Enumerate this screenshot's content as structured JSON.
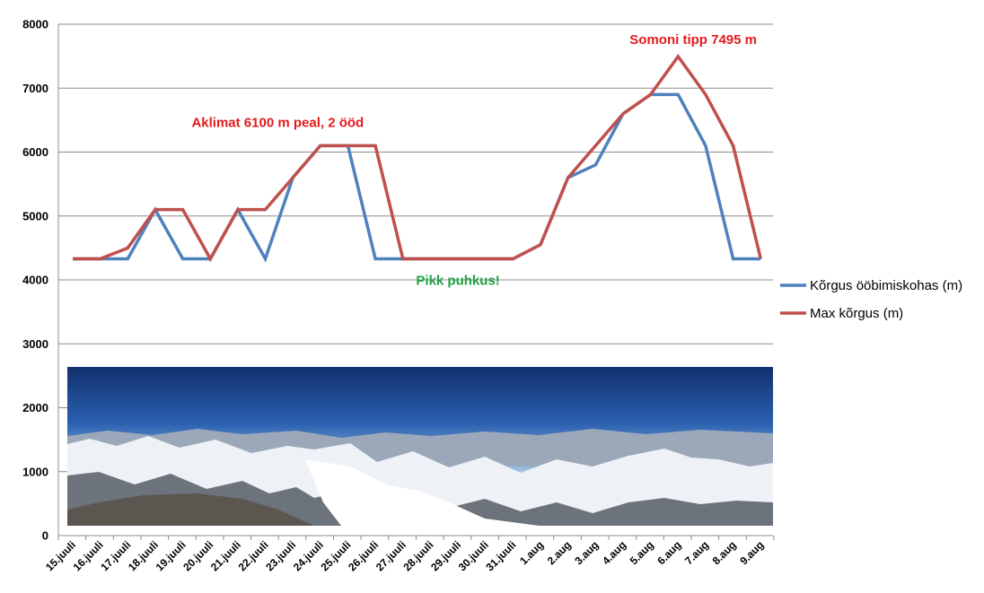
{
  "chart_data": {
    "type": "line",
    "categories": [
      "15.juuli",
      "16.juuli",
      "17.juuli",
      "18.juuli",
      "19.juuli",
      "20.juuli",
      "21.juuli",
      "22.juuli",
      "23.juuli",
      "24.juuli",
      "25.juuli",
      "26.juuli",
      "27.juuli",
      "28.juuli",
      "29.juuli",
      "30.juuli",
      "31.juuli",
      "1.aug",
      "2.aug",
      "3.aug",
      "4.aug",
      "5.aug",
      "6.aug",
      "7.aug",
      "8.aug",
      "9.aug"
    ],
    "x_positions": [
      0,
      1,
      2,
      3,
      4,
      5,
      6,
      7,
      8,
      9,
      10,
      11,
      12,
      13,
      14,
      15,
      16,
      17,
      18,
      19,
      20,
      21,
      22,
      23,
      24,
      25
    ],
    "series": [
      {
        "name": "Kõrgus ööbimiskohas (m)",
        "color": "#4f81bd",
        "x": [
          0,
          1,
          2,
          3,
          4,
          5,
          6,
          7,
          8,
          9,
          10,
          11,
          12,
          13,
          14,
          15,
          16,
          17,
          18,
          19,
          20,
          21,
          22,
          23,
          24,
          25
        ],
        "values": [
          4330,
          4330,
          4330,
          5100,
          4330,
          4330,
          5100,
          4330,
          5600,
          6100,
          6100,
          4330,
          4330,
          4330,
          4330,
          4330,
          4330,
          4550,
          5600,
          5800,
          6600,
          6900,
          6900,
          6100,
          4330,
          4330
        ]
      },
      {
        "name": "Max kõrgus (m)",
        "color": "#c0504d",
        "x": [
          0,
          1,
          2,
          3,
          4,
          5,
          6,
          7,
          8,
          9,
          10,
          11,
          12,
          13,
          14,
          15,
          16,
          17,
          18,
          19,
          20,
          21,
          22,
          23,
          24,
          25
        ],
        "values": [
          4330,
          4330,
          4500,
          5100,
          5100,
          4330,
          5100,
          5100,
          5600,
          6100,
          6100,
          6100,
          4330,
          4330,
          4330,
          4330,
          4330,
          4550,
          5600,
          6100,
          6600,
          6900,
          7495,
          6900,
          6100,
          4330
        ]
      }
    ],
    "ylim": [
      0,
      8000
    ],
    "yticks": [
      0,
      1000,
      2000,
      3000,
      4000,
      5000,
      6000,
      7000,
      8000
    ],
    "grid": "horizontal",
    "legend": "right",
    "title": "",
    "xlabel": "",
    "ylabel": "",
    "annotations": [
      {
        "text": "Aklimat 6100 m peal, 2 ööd",
        "color": "#e41a1c",
        "x": 7.45,
        "y": 6390
      },
      {
        "text": "Somoni tipp 7495 m",
        "color": "#e41a1c",
        "x": 22.55,
        "y": 7690
      },
      {
        "text": "Pikk puhkus!",
        "color": "#1fa045",
        "x": 14.0,
        "y": 3920
      }
    ],
    "photo": {
      "description": "",
      "y_range": [
        150,
        2650
      ]
    }
  }
}
